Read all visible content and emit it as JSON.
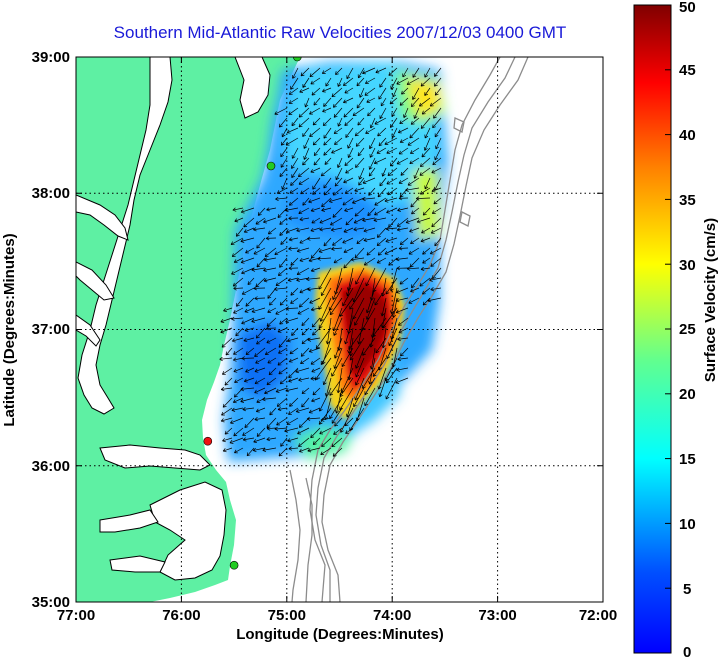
{
  "title": "Southern Mid-Atlantic Raw Velocities 2007/12/03 0400 GMT",
  "x_axis": {
    "label": "Longitude (Degrees:Minutes)",
    "ticks": [
      "77:00",
      "76:00",
      "75:00",
      "74:00",
      "73:00",
      "72:00"
    ]
  },
  "y_axis": {
    "label": "Latitude (Degrees:Minutes)",
    "ticks": [
      "39:00",
      "38:00",
      "37:00",
      "36:00",
      "35:00"
    ]
  },
  "colorbar": {
    "label": "Surface Velocity (cm/s)",
    "ticks": [
      "50",
      "45",
      "40",
      "35",
      "30",
      "25",
      "20",
      "15",
      "10",
      "5",
      "0"
    ],
    "colormap": "jet"
  },
  "colors": {
    "land": "#5ef0a3",
    "water": "#ffffff",
    "bathymetry": "#8c8c8c",
    "vectors": "#000000",
    "station_active": "#22cc22",
    "station_inactive": "#ee1111"
  },
  "chart_data": {
    "type": "heatmap",
    "title": "Southern Mid-Atlantic Raw Velocities 2007/12/03 0400 GMT",
    "xlabel": "Longitude (Degrees:Minutes)",
    "ylabel": "Latitude (Degrees:Minutes)",
    "xlim": [
      -77,
      -72
    ],
    "ylim": [
      35,
      39
    ],
    "clim": [
      0,
      50
    ],
    "units": "cm/s",
    "grid": true,
    "stations": [
      {
        "lon": -74.9,
        "lat": 39.0,
        "status": "active"
      },
      {
        "lon": -75.15,
        "lat": 38.2,
        "status": "active"
      },
      {
        "lon": -75.75,
        "lat": 36.18,
        "status": "inactive"
      },
      {
        "lon": -75.5,
        "lat": 35.27,
        "status": "active"
      }
    ],
    "speed_regions": [
      {
        "lon_range": [
          -74.3,
          -73.95
        ],
        "lat_range": [
          36.55,
          37.35
        ],
        "speed": 48
      },
      {
        "lon_range": [
          -74.5,
          -74.2
        ],
        "lat_range": [
          36.45,
          37.1
        ],
        "speed": 36
      },
      {
        "lon_range": [
          -74.05,
          -73.55
        ],
        "lat_range": [
          38.35,
          38.85
        ],
        "speed": 25
      },
      {
        "lon_range": [
          -73.85,
          -73.55
        ],
        "lat_range": [
          37.75,
          38.2
        ],
        "speed": 22
      },
      {
        "lon_range": [
          -75.5,
          -74.6
        ],
        "lat_range": [
          36.3,
          37.3
        ],
        "speed": 8
      },
      {
        "lon_range": [
          -75.2,
          -74.3
        ],
        "lat_range": [
          37.8,
          38.4
        ],
        "speed": 9
      }
    ]
  }
}
